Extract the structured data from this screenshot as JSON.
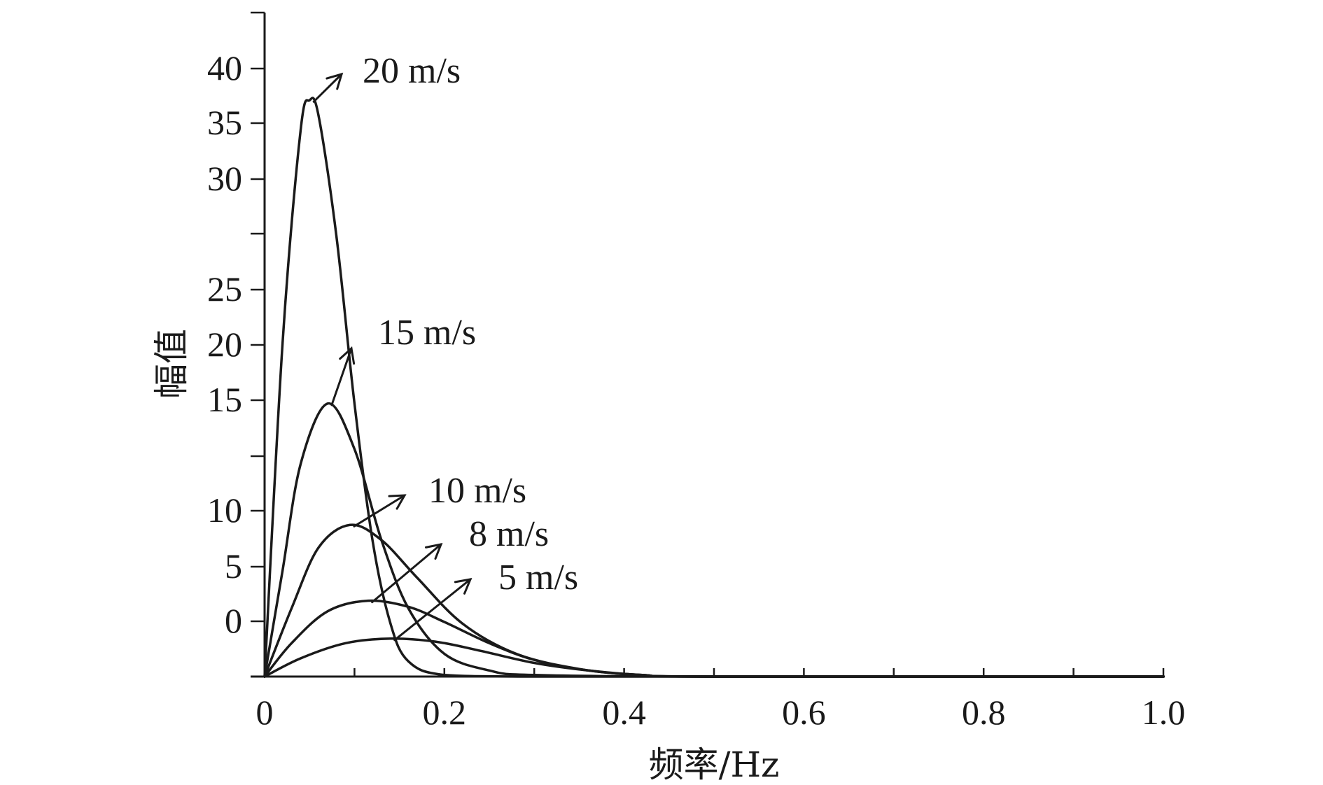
{
  "chart_data": {
    "type": "line",
    "xlabel": "频率/Hz",
    "ylabel": "幅值",
    "xlim": [
      0,
      1.0
    ],
    "ylim": [
      0,
      40
    ],
    "x_ticks": [
      "0",
      "0.2",
      "0.4",
      "0.6",
      "0.8",
      "1.0"
    ],
    "x_tick_values": [
      0,
      0.2,
      0.4,
      0.6,
      0.8,
      1.0
    ],
    "y_tick_labels": [
      "0",
      "5",
      "10",
      "15",
      "20",
      "25",
      "30",
      "35",
      "40"
    ],
    "grid": false,
    "series": [
      {
        "name": "20 m/s",
        "peak_x": 0.05,
        "peak_y": 38,
        "x": [
          0,
          0.02,
          0.04,
          0.05,
          0.06,
          0.08,
          0.1,
          0.12,
          0.14,
          0.16,
          0.2,
          0.3,
          0.5,
          1.0
        ],
        "y": [
          0,
          22,
          36,
          38,
          37,
          29,
          18,
          9,
          3.5,
          1,
          0.1,
          0,
          0,
          0
        ]
      },
      {
        "name": "15 m/s",
        "peak_x": 0.07,
        "peak_y": 18,
        "x": [
          0,
          0.02,
          0.04,
          0.07,
          0.1,
          0.13,
          0.16,
          0.2,
          0.25,
          0.3,
          0.5,
          1.0
        ],
        "y": [
          0,
          7,
          14,
          18,
          15,
          9,
          4.5,
          1.5,
          0.4,
          0.1,
          0,
          0
        ]
      },
      {
        "name": "10 m/s",
        "peak_x": 0.095,
        "peak_y": 10,
        "x": [
          0,
          0.03,
          0.06,
          0.095,
          0.13,
          0.17,
          0.22,
          0.28,
          0.35,
          0.42,
          0.5,
          1.0
        ],
        "y": [
          0,
          4.5,
          8.5,
          10,
          9,
          6.5,
          3.5,
          1.5,
          0.5,
          0.1,
          0,
          0
        ]
      },
      {
        "name": "8 m/s",
        "peak_x": 0.115,
        "peak_y": 5,
        "x": [
          0,
          0.03,
          0.07,
          0.115,
          0.16,
          0.2,
          0.25,
          0.3,
          0.36,
          0.42,
          0.5,
          1.0
        ],
        "y": [
          0,
          2.2,
          4.3,
          5,
          4.6,
          3.6,
          2.2,
          1.1,
          0.4,
          0.1,
          0,
          0
        ]
      },
      {
        "name": "5 m/s",
        "peak_x": 0.14,
        "peak_y": 2.5,
        "x": [
          0,
          0.04,
          0.09,
          0.14,
          0.19,
          0.24,
          0.3,
          0.36,
          0.42,
          0.5,
          1.0
        ],
        "y": [
          0,
          1.2,
          2.2,
          2.5,
          2.3,
          1.7,
          0.9,
          0.4,
          0.1,
          0,
          0
        ]
      }
    ]
  }
}
